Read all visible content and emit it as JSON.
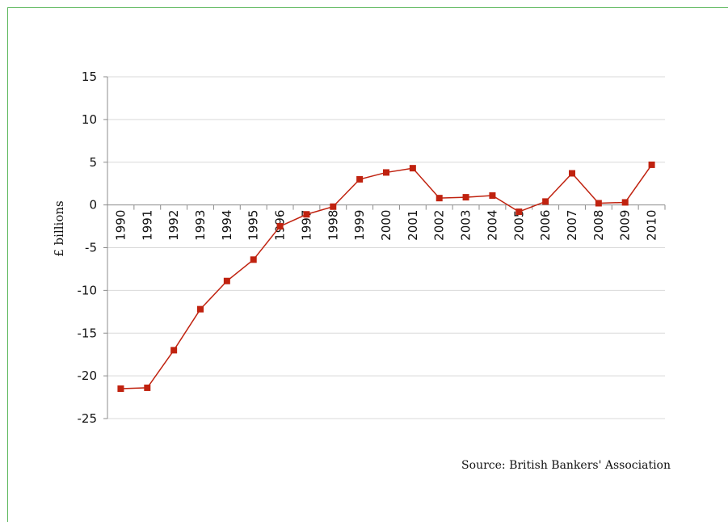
{
  "chart_data": {
    "type": "line",
    "title": "",
    "xlabel": "",
    "ylabel": "£ billions",
    "ylim": [
      -25,
      15
    ],
    "yticks": [
      15,
      10,
      5,
      0,
      -5,
      -10,
      -15,
      -20,
      -25
    ],
    "grid": true,
    "categories": [
      "1990",
      "1991",
      "1992",
      "1993",
      "1994",
      "1995",
      "1996",
      "1997",
      "1998",
      "1999",
      "2000",
      "2001",
      "2002",
      "2003",
      "2004",
      "2005",
      "2006",
      "2007",
      "2008",
      "2009",
      "2010"
    ],
    "series": [
      {
        "values": [
          -21.5,
          -21.4,
          -17.0,
          -12.2,
          -8.9,
          -6.4,
          -2.5,
          -1.1,
          -0.2,
          3.0,
          3.8,
          4.3,
          0.8,
          0.9,
          1.1,
          -0.8,
          0.4,
          3.7,
          0.2,
          0.3,
          4.7
        ],
        "color": "#c0220f"
      }
    ],
    "source": "Source: British Bankers' Association"
  }
}
